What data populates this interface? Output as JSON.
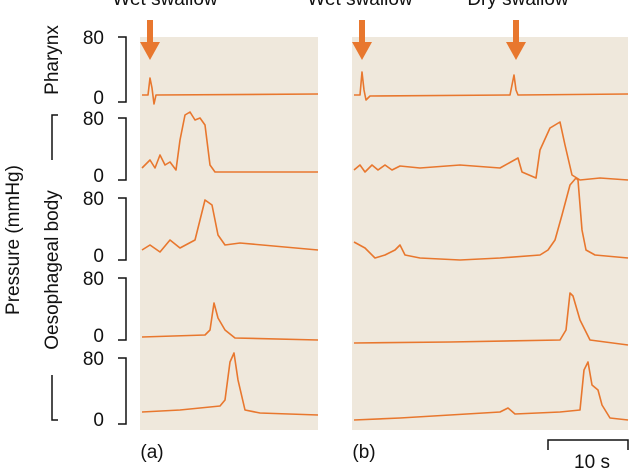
{
  "header": {
    "labels": [
      "Wet swallow",
      "Wet swallow",
      "Dry swallow"
    ]
  },
  "y_axis_title": "Pressure (mmHg)",
  "groups": {
    "pharynx": "Pharynx",
    "body": "Oesophageal body"
  },
  "axes": [
    {
      "top": 80,
      "bottom": 0
    },
    {
      "top": 80,
      "bottom": 0
    },
    {
      "top": 80,
      "bottom": 0
    },
    {
      "top": 80,
      "bottom": 0
    },
    {
      "top": 80,
      "bottom": 0
    }
  ],
  "panels": [
    "(a)",
    "(b)"
  ],
  "scale_bar": "10 s"
}
